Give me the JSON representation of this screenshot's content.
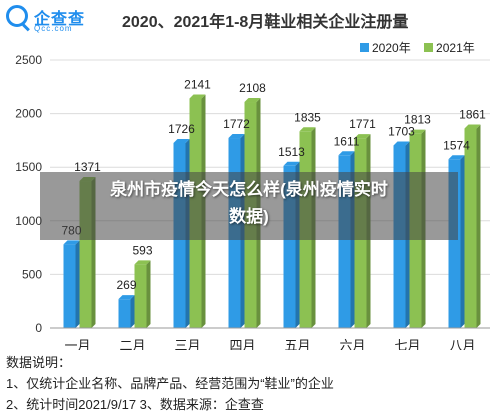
{
  "logo": {
    "name_cn": "企查查",
    "name_en": "Qcc.com"
  },
  "chart_data": {
    "type": "bar",
    "title": "2020、2021年1-8月鞋业相关企业注册量",
    "categories": [
      "一月",
      "二月",
      "三月",
      "四月",
      "五月",
      "六月",
      "七月",
      "八月"
    ],
    "series": [
      {
        "name": "2020年",
        "color": "#2f9be6",
        "values": [
          780,
          269,
          1726,
          1772,
          1513,
          1611,
          1703,
          1574
        ]
      },
      {
        "name": "2021年",
        "color": "#8cc152",
        "values": [
          1371,
          593,
          2141,
          2108,
          1835,
          1771,
          1813,
          1861
        ]
      }
    ],
    "ylim": [
      0,
      2500
    ],
    "yticks": [
      0,
      500,
      1000,
      1500,
      2000,
      2500
    ],
    "legend_position": "top-right",
    "grid": true
  },
  "notes": {
    "heading": "数据说明：",
    "line1": "1、仅统计企业名称、品牌产品、经营范围为“鞋业”的企业",
    "line2": "2、统计时间2021/9/17   3、数据来源：企查查"
  },
  "overlay": {
    "line1": "泉州市疫情今天怎么样(泉州疫情实时",
    "line2": "数据)"
  }
}
